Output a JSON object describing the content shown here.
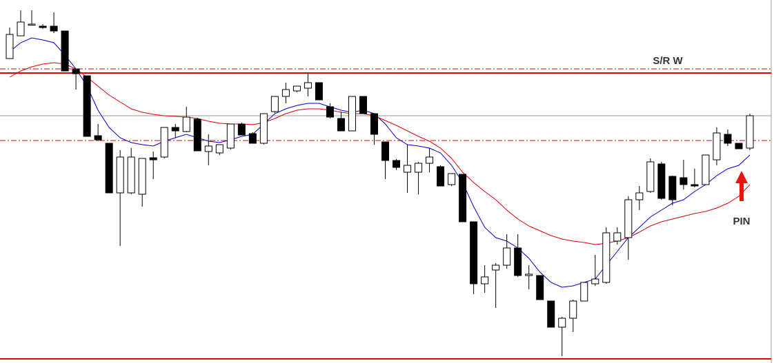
{
  "chart_data": {
    "type": "candlestick",
    "ylim": [
      0,
      527
    ],
    "up_color": "#ffffff",
    "down_color": "#000000",
    "edge_color": "#000000",
    "open": [
      442,
      475,
      491,
      489,
      489,
      482,
      427,
      417,
      330,
      319,
      247,
      247,
      245,
      298,
      299,
      342,
      336,
      354,
      307,
      305,
      312,
      347,
      333,
      319,
      365,
      387,
      395,
      399,
      407,
      372,
      355,
      337,
      387,
      362,
      321,
      294,
      277,
      277,
      290,
      285,
      259,
      274,
      205,
      115,
      135,
      142,
      167,
      127,
      127,
      90,
      52,
      65,
      90,
      115,
      117,
      177,
      182,
      237,
      249,
      289,
      271,
      269,
      259,
      259,
      295,
      332,
      319,
      312
    ],
    "high": [
      487,
      512,
      512,
      492,
      509,
      482,
      427,
      417,
      347,
      319,
      309,
      312,
      297,
      307,
      342,
      347,
      372,
      356,
      332,
      317,
      347,
      349,
      335,
      362,
      387,
      407,
      402,
      422,
      407,
      377,
      365,
      387,
      387,
      362,
      321,
      296,
      317,
      292,
      312,
      287,
      275,
      274,
      205,
      142,
      145,
      187,
      187,
      142,
      127,
      90,
      67,
      92,
      117,
      157,
      197,
      197,
      242,
      257,
      297,
      292,
      272,
      295,
      282,
      302,
      342,
      339,
      319,
      362
    ],
    "low": [
      442,
      475,
      490,
      485,
      479,
      424,
      397,
      329,
      322,
      247,
      170,
      245,
      227,
      267,
      297,
      327,
      335,
      308,
      287,
      302,
      310,
      331,
      319,
      317,
      363,
      377,
      393,
      387,
      382,
      355,
      337,
      337,
      362,
      317,
      267,
      280,
      247,
      245,
      277,
      257,
      257,
      205,
      100,
      102,
      80,
      137,
      125,
      107,
      92,
      52,
      10,
      45,
      90,
      112,
      115,
      172,
      150,
      222,
      247,
      237,
      229,
      252,
      255,
      259,
      287,
      315,
      311,
      309
    ],
    "close": [
      477,
      495,
      492,
      487,
      482,
      424,
      420,
      329,
      324,
      247,
      299,
      299,
      297,
      295,
      342,
      337,
      357,
      308,
      315,
      317,
      347,
      331,
      319,
      362,
      387,
      397,
      402,
      407,
      382,
      357,
      337,
      387,
      362,
      332,
      294,
      284,
      287,
      290,
      299,
      257,
      275,
      205,
      115,
      125,
      142,
      167,
      127,
      129,
      92,
      52,
      65,
      90,
      117,
      122,
      189,
      189,
      237,
      247,
      292,
      239,
      237,
      259,
      257,
      302,
      334,
      319,
      311,
      359
    ],
    "series": [
      {
        "color": "#0000cc",
        "values": [
          452,
          465,
          472,
          469,
          465,
          447,
          427,
          402,
          367,
          342,
          327,
          320,
          317,
          315,
          322,
          327,
          332,
          327,
          322,
          320,
          324,
          329,
          332,
          347,
          362,
          369,
          374,
          377,
          377,
          372,
          367,
          364,
          367,
          362,
          347,
          327,
          317,
          315,
          312,
          305,
          287,
          262,
          227,
          197,
          182,
          177,
          167,
          152,
          132,
          117,
          110,
          112,
          117,
          122,
          142,
          162,
          182,
          197,
          212,
          222,
          232,
          237,
          249,
          259,
          272,
          282,
          287,
          302
        ]
      },
      {
        "color": "#e00000",
        "values": [
          415,
          424,
          430,
          434,
          436,
          434,
          427,
          415,
          402,
          389,
          379,
          369,
          364,
          361,
          359,
          358,
          357,
          355,
          351,
          348,
          347,
          347,
          346,
          349,
          355,
          362,
          367,
          369,
          369,
          367,
          364,
          362,
          362,
          359,
          352,
          345,
          337,
          329,
          322,
          312,
          297,
          277,
          262,
          249,
          237,
          222,
          209,
          199,
          192,
          185,
          180,
          177,
          175,
          172,
          174,
          177,
          182,
          190,
          199,
          205,
          209,
          213,
          217,
          220,
          225,
          232,
          242,
          259
        ]
      }
    ],
    "levels": [
      {
        "value": 427,
        "color": "#e00000",
        "style": "dashdot"
      },
      {
        "value": 421,
        "color": "#e00000",
        "style": "solid"
      },
      {
        "value": 359,
        "color": "#999999",
        "style": "solid"
      },
      {
        "value": 323,
        "color": "#e00000",
        "style": "dashdot"
      },
      {
        "value": 6,
        "color": "#e00000",
        "style": "solid"
      }
    ],
    "annotations": [
      "S/R W",
      "PIN"
    ]
  }
}
